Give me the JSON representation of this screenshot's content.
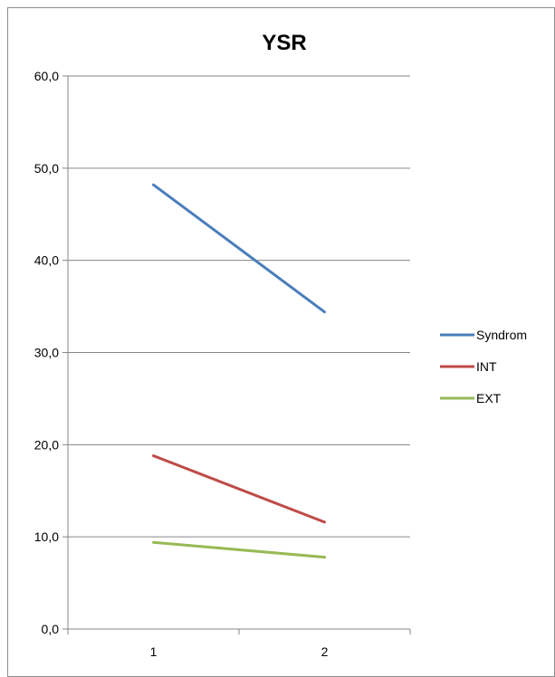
{
  "chart_data": {
    "type": "line",
    "title": "YSR",
    "xlabel": "",
    "ylabel": "",
    "categories": [
      "1",
      "2"
    ],
    "ylim": [
      0,
      60
    ],
    "yticks": [
      "0,0",
      "10,0",
      "20,0",
      "30,0",
      "40,0",
      "50,0",
      "60,0"
    ],
    "grid": true,
    "legend_position": "right",
    "series": [
      {
        "name": "Syndrom",
        "color": "#4a7ebb",
        "values": [
          48.2,
          34.4
        ]
      },
      {
        "name": "INT",
        "color": "#be4b48",
        "values": [
          18.8,
          11.6
        ]
      },
      {
        "name": "EXT",
        "color": "#98b954",
        "values": [
          9.4,
          7.8
        ]
      }
    ]
  }
}
